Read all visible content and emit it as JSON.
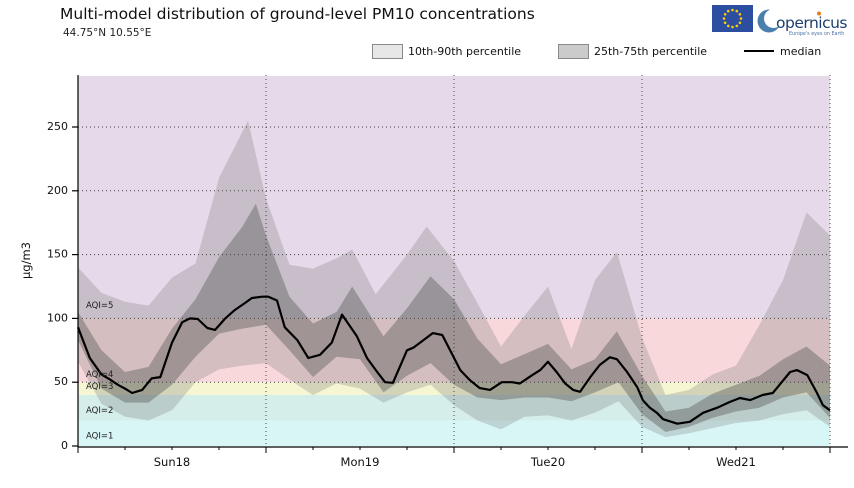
{
  "header": {
    "title": "Multi-model distribution of ground-level PM10 concentrations",
    "coords": "44.75°N 10.55°E"
  },
  "logos": {
    "eu_flag_name": "eu-flag",
    "copernicus_wordmark": "opernicus",
    "copernicus_tagline": "Europe's eyes on Earth"
  },
  "legend": {
    "p10_90_label": "10th-90th percentile",
    "p25_75_label": "25th-75th percentile",
    "median_label": "median",
    "p10_90_swatch": "#e7e7e7",
    "p25_75_swatch": "#cbcbcb",
    "median_color": "#000000"
  },
  "chart_data": {
    "type": "area",
    "title": "Multi-model distribution of ground-level PM10 concentrations",
    "xlabel": "",
    "ylabel": "µg/m3",
    "x_unit": "hours from Sun18 00:00",
    "xlim": [
      0,
      96
    ],
    "ylim": [
      0,
      290
    ],
    "yticks": [
      0,
      50,
      100,
      150,
      200,
      250
    ],
    "grid": "dotted, horizontal at yticks and vertical at day boundaries",
    "legend_position": "top",
    "day_labels": [
      {
        "label": "Sun18",
        "center_hour": 12
      },
      {
        "label": "Mon19",
        "center_hour": 36
      },
      {
        "label": "Tue20",
        "center_hour": 60
      },
      {
        "label": "Wed21",
        "center_hour": 84
      }
    ],
    "aqi_bands": [
      {
        "label": "AQI=1",
        "range": [
          0,
          20
        ],
        "color": "#d8f6f6",
        "label_v": 8
      },
      {
        "label": "AQI=2",
        "range": [
          20,
          40
        ],
        "color": "#d5eeea",
        "label_v": 28
      },
      {
        "label": "AQI=3",
        "range": [
          40,
          50
        ],
        "color": "#f6f6d2",
        "label_v": 46.5
      },
      {
        "label": "AQI=4",
        "range": [
          50,
          100
        ],
        "color": "#f9d8dc",
        "label_v": 56
      },
      {
        "label": "AQI=5",
        "range": [
          100,
          290
        ],
        "color": "#e6d9e9",
        "label_v": 110
      }
    ],
    "colors": {
      "band_10_90": "rgba(128,128,128,0.30)",
      "band_25_75": "rgba(90,90,90,0.42)",
      "median": "#000000"
    },
    "series": {
      "median": [
        [
          0,
          93
        ],
        [
          1.5,
          69
        ],
        [
          3,
          56
        ],
        [
          4.1,
          52
        ],
        [
          5.1,
          48
        ],
        [
          6,
          45
        ],
        [
          6.9,
          41.5
        ],
        [
          8.2,
          44
        ],
        [
          9.4,
          53
        ],
        [
          10.5,
          54
        ],
        [
          12,
          81
        ],
        [
          13.3,
          97
        ],
        [
          14.3,
          100
        ],
        [
          15.3,
          99.5
        ],
        [
          16.5,
          92.5
        ],
        [
          17.5,
          91
        ],
        [
          18.8,
          100
        ],
        [
          20,
          106.5
        ],
        [
          21.3,
          112
        ],
        [
          22.2,
          116
        ],
        [
          23.5,
          117
        ],
        [
          24.3,
          117
        ],
        [
          25.4,
          114
        ],
        [
          26.4,
          93
        ],
        [
          28,
          83
        ],
        [
          29.4,
          69
        ],
        [
          30.9,
          71.5
        ],
        [
          32.4,
          81
        ],
        [
          33.7,
          103
        ],
        [
          35.6,
          86
        ],
        [
          36.9,
          69
        ],
        [
          38.2,
          58
        ],
        [
          39.2,
          50
        ],
        [
          40.2,
          49.5
        ],
        [
          42,
          75
        ],
        [
          42.8,
          77
        ],
        [
          45.3,
          88.5
        ],
        [
          46.5,
          87
        ],
        [
          48.8,
          59.5
        ],
        [
          50,
          51.7
        ],
        [
          51.3,
          45.4
        ],
        [
          52.6,
          44
        ],
        [
          54.1,
          50
        ],
        [
          55.4,
          50
        ],
        [
          56.4,
          49
        ],
        [
          58,
          55.6
        ],
        [
          59,
          59.5
        ],
        [
          60,
          66
        ],
        [
          61.1,
          58
        ],
        [
          62.2,
          49
        ],
        [
          63.2,
          44
        ],
        [
          64.1,
          42.5
        ],
        [
          65.4,
          54
        ],
        [
          66.6,
          63.5
        ],
        [
          67.9,
          69.5
        ],
        [
          68.8,
          68
        ],
        [
          70.1,
          58
        ],
        [
          71.4,
          46
        ],
        [
          72.1,
          36
        ],
        [
          73,
          30
        ],
        [
          73.9,
          26
        ],
        [
          74.7,
          21
        ],
        [
          76.5,
          17.5
        ],
        [
          78.1,
          19
        ],
        [
          79.8,
          26
        ],
        [
          81.6,
          30
        ],
        [
          83.2,
          34.5
        ],
        [
          84.5,
          37.6
        ],
        [
          85.8,
          36
        ],
        [
          87.4,
          40
        ],
        [
          88.7,
          41.5
        ],
        [
          90.9,
          58
        ],
        [
          91.8,
          59.5
        ],
        [
          93.1,
          55.6
        ],
        [
          94.3,
          42
        ],
        [
          95.1,
          32
        ],
        [
          96,
          28
        ]
      ],
      "p90": [
        [
          0,
          140
        ],
        [
          3,
          120
        ],
        [
          6,
          113
        ],
        [
          9,
          110
        ],
        [
          12,
          132
        ],
        [
          15,
          143
        ],
        [
          18,
          210
        ],
        [
          21.7,
          255
        ],
        [
          24,
          194
        ],
        [
          27,
          142
        ],
        [
          30,
          139
        ],
        [
          33,
          147
        ],
        [
          35,
          154
        ],
        [
          38,
          119
        ],
        [
          42,
          150
        ],
        [
          44.5,
          172
        ],
        [
          48,
          145
        ],
        [
          51,
          112
        ],
        [
          54,
          78
        ],
        [
          57,
          102
        ],
        [
          60,
          125
        ],
        [
          63,
          76
        ],
        [
          66,
          130
        ],
        [
          68.8,
          152
        ],
        [
          72,
          85
        ],
        [
          75,
          40
        ],
        [
          78,
          44
        ],
        [
          81,
          56
        ],
        [
          84,
          63
        ],
        [
          87,
          95
        ],
        [
          90,
          130
        ],
        [
          93,
          183
        ],
        [
          96,
          165
        ]
      ],
      "p75": [
        [
          0,
          105
        ],
        [
          3,
          75
        ],
        [
          6,
          58
        ],
        [
          9,
          62
        ],
        [
          12,
          92
        ],
        [
          15,
          115
        ],
        [
          18,
          148
        ],
        [
          21,
          172
        ],
        [
          22.7,
          190
        ],
        [
          24,
          165
        ],
        [
          27,
          117
        ],
        [
          30,
          96
        ],
        [
          33,
          105
        ],
        [
          35,
          125
        ],
        [
          39,
          86
        ],
        [
          42,
          108
        ],
        [
          45,
          133
        ],
        [
          48,
          115
        ],
        [
          51,
          84
        ],
        [
          54,
          64
        ],
        [
          57,
          72
        ],
        [
          60,
          80
        ],
        [
          63,
          60
        ],
        [
          66,
          68
        ],
        [
          68.8,
          90
        ],
        [
          72,
          55
        ],
        [
          75,
          27
        ],
        [
          78,
          30
        ],
        [
          81,
          41
        ],
        [
          84,
          48
        ],
        [
          87,
          55
        ],
        [
          90,
          68
        ],
        [
          93,
          78
        ],
        [
          96,
          63
        ]
      ],
      "p25": [
        [
          0,
          83
        ],
        [
          3,
          45
        ],
        [
          6,
          34
        ],
        [
          9,
          34
        ],
        [
          12,
          48
        ],
        [
          15,
          70
        ],
        [
          18,
          88
        ],
        [
          21,
          92
        ],
        [
          24,
          95
        ],
        [
          27,
          75
        ],
        [
          30,
          54
        ],
        [
          33,
          70
        ],
        [
          36,
          68
        ],
        [
          39,
          42
        ],
        [
          42,
          55
        ],
        [
          45,
          65
        ],
        [
          48,
          48
        ],
        [
          51,
          38
        ],
        [
          54,
          36
        ],
        [
          57,
          38
        ],
        [
          60,
          38
        ],
        [
          63,
          35
        ],
        [
          66,
          42
        ],
        [
          69,
          50
        ],
        [
          72,
          25
        ],
        [
          75,
          11
        ],
        [
          78,
          15
        ],
        [
          81,
          22
        ],
        [
          84,
          27
        ],
        [
          87,
          30
        ],
        [
          90,
          38
        ],
        [
          93,
          42
        ],
        [
          96,
          22
        ]
      ],
      "p10": [
        [
          0,
          66
        ],
        [
          3,
          33
        ],
        [
          6,
          23
        ],
        [
          9,
          20
        ],
        [
          12,
          28
        ],
        [
          15,
          50
        ],
        [
          18,
          60
        ],
        [
          21,
          63
        ],
        [
          24,
          65
        ],
        [
          27,
          52
        ],
        [
          30,
          40
        ],
        [
          33,
          49
        ],
        [
          36,
          45
        ],
        [
          39,
          34
        ],
        [
          42,
          42
        ],
        [
          45,
          48
        ],
        [
          48,
          32
        ],
        [
          51,
          20
        ],
        [
          54,
          13
        ],
        [
          57,
          23
        ],
        [
          60,
          24
        ],
        [
          63,
          20
        ],
        [
          66,
          26
        ],
        [
          69,
          35
        ],
        [
          72,
          15
        ],
        [
          75,
          7
        ],
        [
          78,
          10
        ],
        [
          81,
          14
        ],
        [
          84,
          18
        ],
        [
          87,
          20
        ],
        [
          90,
          25
        ],
        [
          93,
          28
        ],
        [
          96,
          15
        ]
      ]
    }
  }
}
